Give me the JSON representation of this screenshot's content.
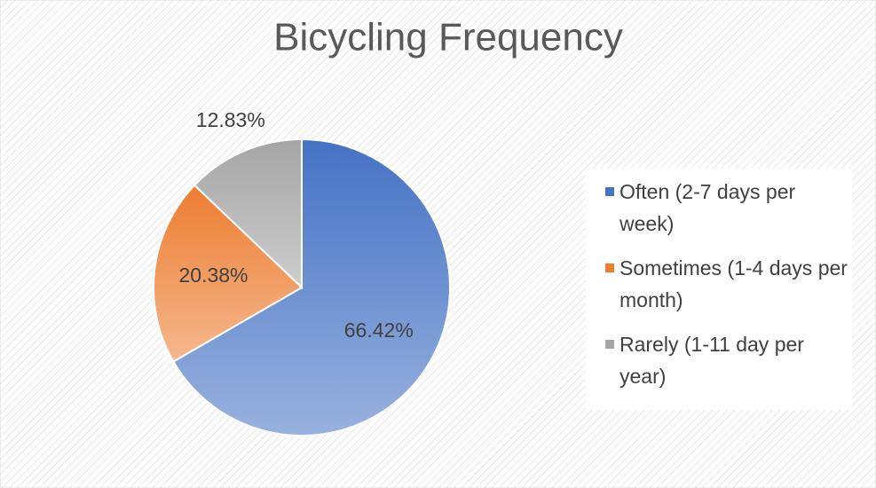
{
  "chart_data": {
    "type": "pie",
    "title": "Bicycling Frequency",
    "categories": [
      "Often (2-7 days per week)",
      "Sometimes (1-4 days per month)",
      "Rarely (1-11 day per year)"
    ],
    "values": [
      66.42,
      20.38,
      12.83
    ],
    "value_labels": [
      "66.42%",
      "20.38%",
      "12.83%"
    ],
    "colors": [
      "#4472c4",
      "#ed7d31",
      "#a5a5a5"
    ],
    "legend": "right"
  }
}
